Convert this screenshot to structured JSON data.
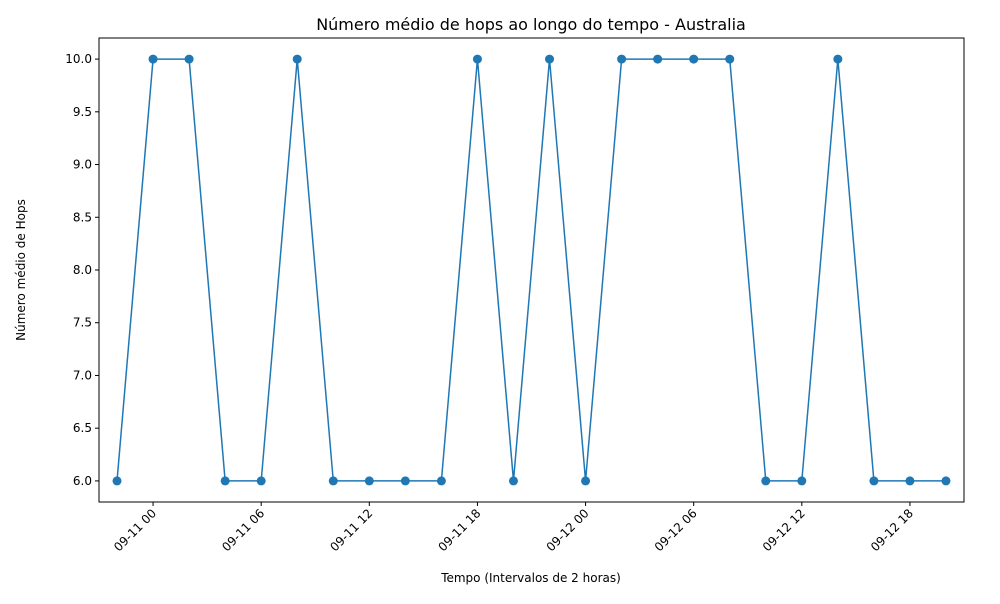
{
  "chart_data": {
    "type": "line",
    "title": "Número médio de hops ao longo do tempo - Australia",
    "xlabel": "Tempo (Intervalos de 2 horas)",
    "ylabel": "Número médio de Hops",
    "x_type": "datetime",
    "xlim": [
      "2024-09-10T21:00",
      "2024-09-12T21:00"
    ],
    "ylim": [
      5.8,
      10.2
    ],
    "x_ticks": [
      {
        "value": "2024-09-11T00:00",
        "label": "09-11 00"
      },
      {
        "value": "2024-09-11T06:00",
        "label": "09-11 06"
      },
      {
        "value": "2024-09-11T12:00",
        "label": "09-11 12"
      },
      {
        "value": "2024-09-11T18:00",
        "label": "09-11 18"
      },
      {
        "value": "2024-09-12T00:00",
        "label": "09-12 00"
      },
      {
        "value": "2024-09-12T06:00",
        "label": "09-12 06"
      },
      {
        "value": "2024-09-12T12:00",
        "label": "09-12 12"
      },
      {
        "value": "2024-09-12T18:00",
        "label": "09-12 18"
      }
    ],
    "y_ticks": [
      {
        "value": 6.0,
        "label": "6.0"
      },
      {
        "value": 6.5,
        "label": "6.5"
      },
      {
        "value": 7.0,
        "label": "7.0"
      },
      {
        "value": 7.5,
        "label": "7.5"
      },
      {
        "value": 8.0,
        "label": "8.0"
      },
      {
        "value": 8.5,
        "label": "8.5"
      },
      {
        "value": 9.0,
        "label": "9.0"
      },
      {
        "value": 9.5,
        "label": "9.5"
      },
      {
        "value": 10.0,
        "label": "10.0"
      }
    ],
    "grid": false,
    "color": "#1f77b4",
    "series": [
      {
        "x": [
          "2024-09-10T22:00",
          "2024-09-11T00:00",
          "2024-09-11T02:00",
          "2024-09-11T04:00",
          "2024-09-11T06:00",
          "2024-09-11T08:00",
          "2024-09-11T10:00",
          "2024-09-11T12:00",
          "2024-09-11T14:00",
          "2024-09-11T16:00",
          "2024-09-11T18:00",
          "2024-09-11T20:00",
          "2024-09-11T22:00",
          "2024-09-12T00:00",
          "2024-09-12T02:00",
          "2024-09-12T04:00",
          "2024-09-12T06:00",
          "2024-09-12T08:00",
          "2024-09-12T10:00",
          "2024-09-12T12:00",
          "2024-09-12T14:00",
          "2024-09-12T16:00",
          "2024-09-12T18:00",
          "2024-09-12T20:00"
        ],
        "values": [
          6,
          10,
          10,
          6,
          6,
          10,
          6,
          6,
          6,
          6,
          10,
          6,
          10,
          6,
          10,
          10,
          10,
          10,
          6,
          6,
          10,
          6,
          6,
          6
        ]
      }
    ]
  }
}
